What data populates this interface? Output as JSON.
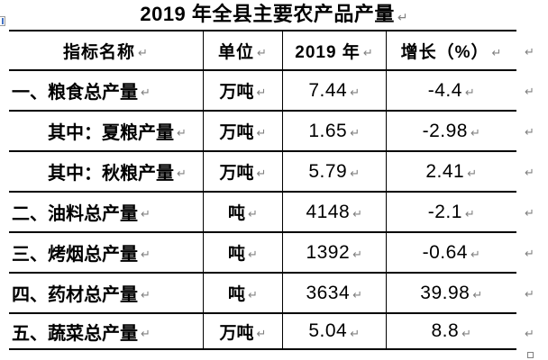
{
  "title": {
    "text": "2019 年全县主要农产品产量"
  },
  "marks": {
    "cell_end": "↵",
    "row_end": "↵",
    "paragraph": "↵"
  },
  "table": {
    "headers": [
      "指标名称",
      "单位",
      "2019 年",
      "增长（%）"
    ],
    "rows": [
      {
        "name": "一、粮食总产量",
        "indent": false,
        "unit": "万吨",
        "value": "7.44",
        "growth": "-4.4"
      },
      {
        "name": "其中：夏粮产量",
        "indent": true,
        "unit": "万吨",
        "value": "1.65",
        "growth": "-2.98"
      },
      {
        "name": "其中：秋粮产量",
        "indent": true,
        "unit": "万吨",
        "value": "5.79",
        "growth": "2.41"
      },
      {
        "name": "二、油料总产量",
        "indent": false,
        "unit": "吨",
        "value": "4148",
        "growth": "-2.1"
      },
      {
        "name": "三、烤烟总产量",
        "indent": false,
        "unit": "吨",
        "value": "1392",
        "growth": "-0.64"
      },
      {
        "name": "四、药材总产量",
        "indent": false,
        "unit": "吨",
        "value": "3634",
        "growth": "39.98"
      },
      {
        "name": "五、蔬菜总产量",
        "indent": false,
        "unit": "万吨",
        "value": "5.04",
        "growth": "8.8"
      }
    ]
  },
  "colors": {
    "border": "#000000",
    "text": "#000000",
    "mark_gray": "#808080",
    "handle_border": "#9a9a9a",
    "handle_accent": "#4472c4"
  }
}
